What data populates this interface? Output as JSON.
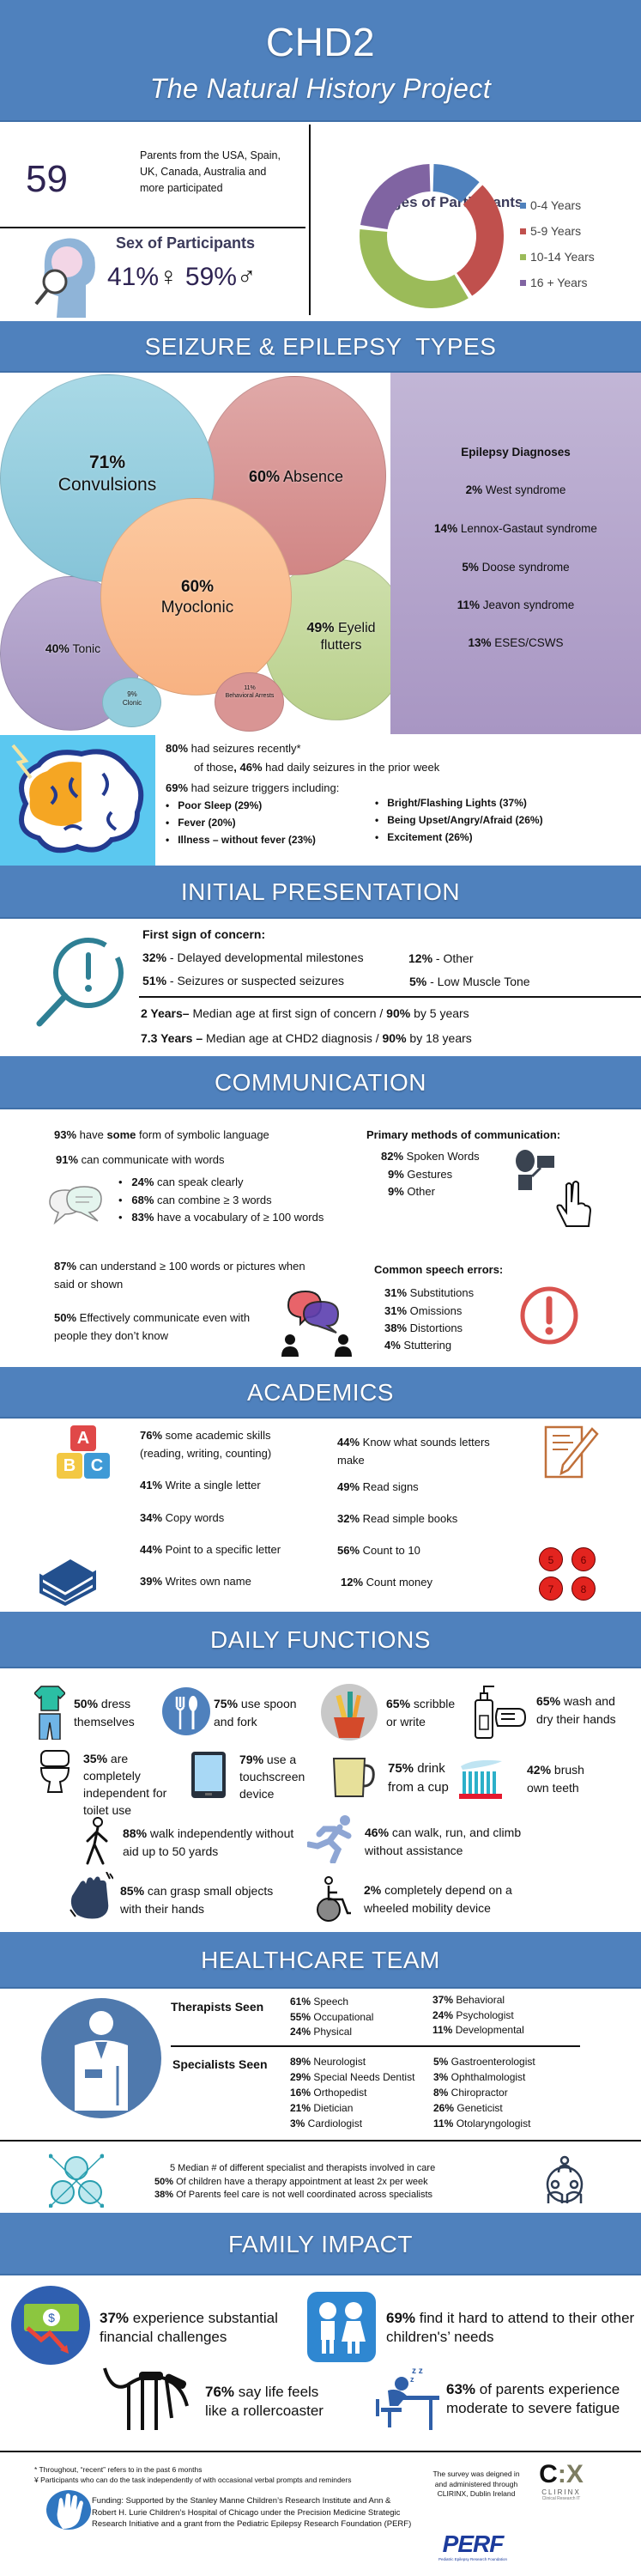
{
  "header": {
    "title": "CHD2",
    "subtitle": "The Natural History Project"
  },
  "intro": {
    "count": "59",
    "count_text": "Parents from the USA, Spain, UK, Canada, Australia and more participated",
    "sex_title": "Sex of Participants",
    "female_pct": "41%",
    "female_symbol": "♀",
    "male_pct": "59%",
    "male_symbol": "♂"
  },
  "chart_data": {
    "type": "donut",
    "title": "Ages of Participants",
    "categories": [
      "0-4 Years",
      "5-9 Years",
      "10-14 Years",
      "16 + Years"
    ],
    "values": [
      12,
      29,
      36,
      23
    ],
    "colors": [
      "#4f81bd",
      "#c0504d",
      "#9bbb59",
      "#8064a2"
    ],
    "legend": "right"
  },
  "seizures": {
    "title": "SEIZURE & EPILEPSY  TYPES",
    "types": [
      {
        "pct": "71%",
        "name": "Convulsions"
      },
      {
        "pct": "60%",
        "name": "Absence"
      },
      {
        "pct": "60%",
        "name": "Myoclonic"
      },
      {
        "pct": "49%",
        "name": "Eyelid flutters"
      },
      {
        "pct": "40%",
        "name": "Tonic"
      },
      {
        "pct": "9%",
        "name": "Clonic"
      },
      {
        "pct": "11%",
        "name": "Behavioral Arrests"
      }
    ],
    "diagnoses_title": "Epilepsy Diagnoses",
    "diagnoses": [
      {
        "pct": "2%",
        "name": "West syndrome"
      },
      {
        "pct": "14%",
        "name": "Lennox-Gastaut syndrome"
      },
      {
        "pct": "5%",
        "name": "Doose syndrome"
      },
      {
        "pct": "11%",
        "name": "Jeavon syndrome"
      },
      {
        "pct": "13%",
        "name": "ESES/CSWS"
      }
    ],
    "recent_pct": "80%",
    "recent_text": "had seizures recently*",
    "daily_pre": "of those",
    "daily_pct": ", 46%",
    "daily_text": "had daily seizures in the prior week",
    "triggers_pct": "69%",
    "triggers_text": "had seizure triggers including:",
    "triggers": [
      "Poor Sleep (29%)",
      "Fever (20%)",
      "Illness – without fever (23%)",
      "Bright/Flashing Lights (37%)",
      "Being Upset/Angry/Afraid (26%)",
      "Excitement (26%)"
    ],
    "colors": {
      "convulsions": "#92cddc",
      "absence": "#d99594",
      "myoclonic": "#fabf8f",
      "eyelid": "#c3d69b",
      "tonic": "#b2a2c7",
      "panel": "#b3a2c9",
      "brain_bg": "#5bc8f0"
    }
  },
  "initial": {
    "title": "INITIAL PRESENTATION",
    "concern_title": "First sign of concern:",
    "concerns": [
      {
        "pct": "32%",
        "text": "- Delayed developmental milestones"
      },
      {
        "pct": "51%",
        "text": "- Seizures or suspected seizures"
      },
      {
        "pct": "12%",
        "text": "- Other"
      },
      {
        "pct": "5%",
        "text": "- Low Muscle Tone"
      }
    ],
    "median1_bold": "2 Years–",
    "median1_text": " Median age at first sign of concern / ",
    "median1_bold2": "90%",
    "median1_end": " by 5 years",
    "median2_bold": "7.3 Years –",
    "median2_text": " Median age at CHD2 diagnosis / ",
    "median2_bold2": "90%",
    "median2_end": " by 18 years"
  },
  "communication": {
    "title": "COMMUNICATION",
    "symbolic_pct": "93%",
    "symbolic_pre": " have ",
    "symbolic_bold": "some",
    "symbolic_post": " form of symbolic language",
    "words_pct": "91%",
    "words_text": " can communicate with words",
    "bullets": [
      {
        "pct": "24%",
        "text": " can speak clearly"
      },
      {
        "pct": "68%",
        "text": " can combine ≥ 3 words"
      },
      {
        "pct": "83%",
        "text": " have a vocabulary of ≥ 100 words"
      }
    ],
    "understand_pct": "87%",
    "understand_text": " can understand ≥ 100 words or pictures when said or shown",
    "effective_pct": "50%",
    "effective_text": " Effectively communicate even with people they don’t know",
    "methods_title": "Primary methods of communication:",
    "methods": [
      {
        "pct": "82%",
        "text": " Spoken Words"
      },
      {
        "pct": "9%",
        "text": " Gestures"
      },
      {
        "pct": "9%",
        "text": " Other"
      }
    ],
    "errors_title": "Common speech errors:",
    "errors": [
      {
        "pct": "31%",
        "text": " Substitutions"
      },
      {
        "pct": "31%",
        "text": " Omissions"
      },
      {
        "pct": "38%",
        "text": " Distortions"
      },
      {
        "pct": "4%",
        "text": " Stuttering"
      }
    ]
  },
  "academics": {
    "title": "ACADEMICS",
    "col1": [
      {
        "pct": "76%",
        "text": " some academic skills (reading, writing, counting)"
      },
      {
        "pct": "41%",
        "text": " Write a single letter"
      },
      {
        "pct": "34%",
        "text": " Copy words"
      },
      {
        "pct": "44%",
        "text": " Point to a specific letter"
      },
      {
        "pct": "39%",
        "text": " Writes own name"
      }
    ],
    "col2": [
      {
        "pct": "44%",
        "text": " Know what sounds letters make"
      },
      {
        "pct": "49%",
        "text": " Read signs"
      },
      {
        "pct": "32%",
        "text": " Read simple books"
      },
      {
        "pct": "56%",
        "text": " Count to 10"
      },
      {
        "pct": "12%",
        "text": " Count money"
      }
    ],
    "blocks": [
      "A",
      "B",
      "C"
    ],
    "apples": [
      "5",
      "6",
      "7",
      "8"
    ]
  },
  "daily": {
    "title": "DAILY FUNCTIONS",
    "items": [
      {
        "pct": "50%",
        "text": " dress themselves"
      },
      {
        "pct": "75%",
        "text": " use spoon and fork"
      },
      {
        "pct": "65%",
        "text": " scribble or write"
      },
      {
        "pct": "65%",
        "text": " wash and dry their hands"
      },
      {
        "pct": "35%",
        "text": " are completely independent for toilet use"
      },
      {
        "pct": "79%",
        "text": " use a touchscreen device"
      },
      {
        "pct": "75%",
        "text": " drink from a cup"
      },
      {
        "pct": "42%",
        "text": " brush own teeth"
      },
      {
        "pct": "88%",
        "text": " walk independently without aid up to 50 yards"
      },
      {
        "pct": "46%",
        "text": " can walk, run, and climb without assistance"
      },
      {
        "pct": "85%",
        "text": " can grasp small objects with their hands"
      },
      {
        "pct": "2%",
        "text": " completely depend on a wheeled mobility device"
      }
    ]
  },
  "healthcare": {
    "title": "HEALTHCARE TEAM",
    "therapists_label": "Therapists Seen",
    "therapists": [
      {
        "pct": "61%",
        "text": " Speech"
      },
      {
        "pct": "55%",
        "text": " Occupational"
      },
      {
        "pct": "24%",
        "text": " Physical"
      },
      {
        "pct": "37%",
        "text": " Behavioral"
      },
      {
        "pct": "24%",
        "text": " Psychologist"
      },
      {
        "pct": "11%",
        "text": " Developmental"
      }
    ],
    "specialists_label": "Specialists Seen",
    "specialists": [
      {
        "pct": "89%",
        "text": " Neurologist"
      },
      {
        "pct": "29%",
        "text": " Special Needs Dentist"
      },
      {
        "pct": "16%",
        "text": " Orthopedist"
      },
      {
        "pct": "21%",
        "text": " Dietician"
      },
      {
        "pct": "3%",
        "text": " Cardiologist"
      },
      {
        "pct": "5%",
        "text": " Gastroenterologist"
      },
      {
        "pct": "3%",
        "text": " Ophthalmologist"
      },
      {
        "pct": "8%",
        "text": " Chiropractor"
      },
      {
        "pct": "26%",
        "text": " Geneticist"
      },
      {
        "pct": "11%",
        "text": " Otolaryngologist"
      }
    ],
    "summary": [
      {
        "pct": "5",
        "text": " Median # of different specialist and therapists involved in care"
      },
      {
        "pct": "50%",
        "text": " Of children have a therapy appointment at least 2x per week"
      },
      {
        "pct": "38%",
        "text": " Of Parents feel care is not well coordinated across specialists"
      }
    ]
  },
  "family": {
    "title": "FAMILY IMPACT",
    "items": [
      {
        "pct": "37%",
        "text": " experience substantial financial challenges"
      },
      {
        "pct": "69%",
        "text": " find it hard to attend to their other children's’ needs"
      },
      {
        "pct": "76%",
        "text": " say life feels like a rollercoaster"
      },
      {
        "pct": "63%",
        "text": " of parents experience moderate to severe fatigue"
      }
    ]
  },
  "footer": {
    "note1": "* Throughout, “recent” refers to in the past 6 months",
    "note2": "¥ Participants who can do the task independently of with occasional verbal prompts and reminders",
    "funding": "Funding: Supported by the Stanley Manne Children’s Research Institute and Ann & Robert H. Lurie Children’s Hospital of Chicago under the Precision Medicine Strategic Research Initiative and a grant from the Pediatric Epilepsy Research Foundation (PERF)",
    "survey": "The survey was deigned in and administered through CLIRINX, Dublin Ireland",
    "clirinx_logo": "CLIRINX",
    "clirinx_tagline": "Clinical Research IT",
    "perf_logo": "PERF",
    "perf_tagline": "Pediatric Epilepsy Research Foundation"
  }
}
